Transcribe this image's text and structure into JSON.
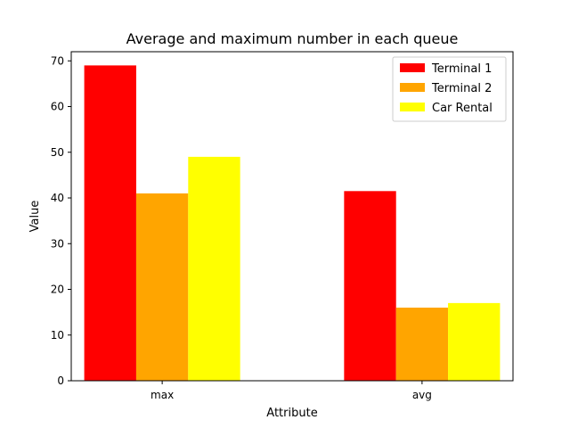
{
  "chart_data": {
    "type": "bar",
    "title": "Average and maximum number in each queue",
    "xlabel": "Attribute",
    "ylabel": "Value",
    "categories": [
      "max",
      "avg"
    ],
    "ylim": [
      0,
      72
    ],
    "yticks": [
      0,
      10,
      20,
      30,
      40,
      50,
      60,
      70
    ],
    "grid": false,
    "legend_position": "top-right",
    "series": [
      {
        "name": "Terminal 1",
        "color": "#ff0000",
        "values": [
          69,
          41.5
        ]
      },
      {
        "name": "Terminal 2",
        "color": "#ffa500",
        "values": [
          41,
          16
        ]
      },
      {
        "name": "Car Rental",
        "color": "#ffff00",
        "values": [
          49,
          17
        ]
      }
    ]
  }
}
